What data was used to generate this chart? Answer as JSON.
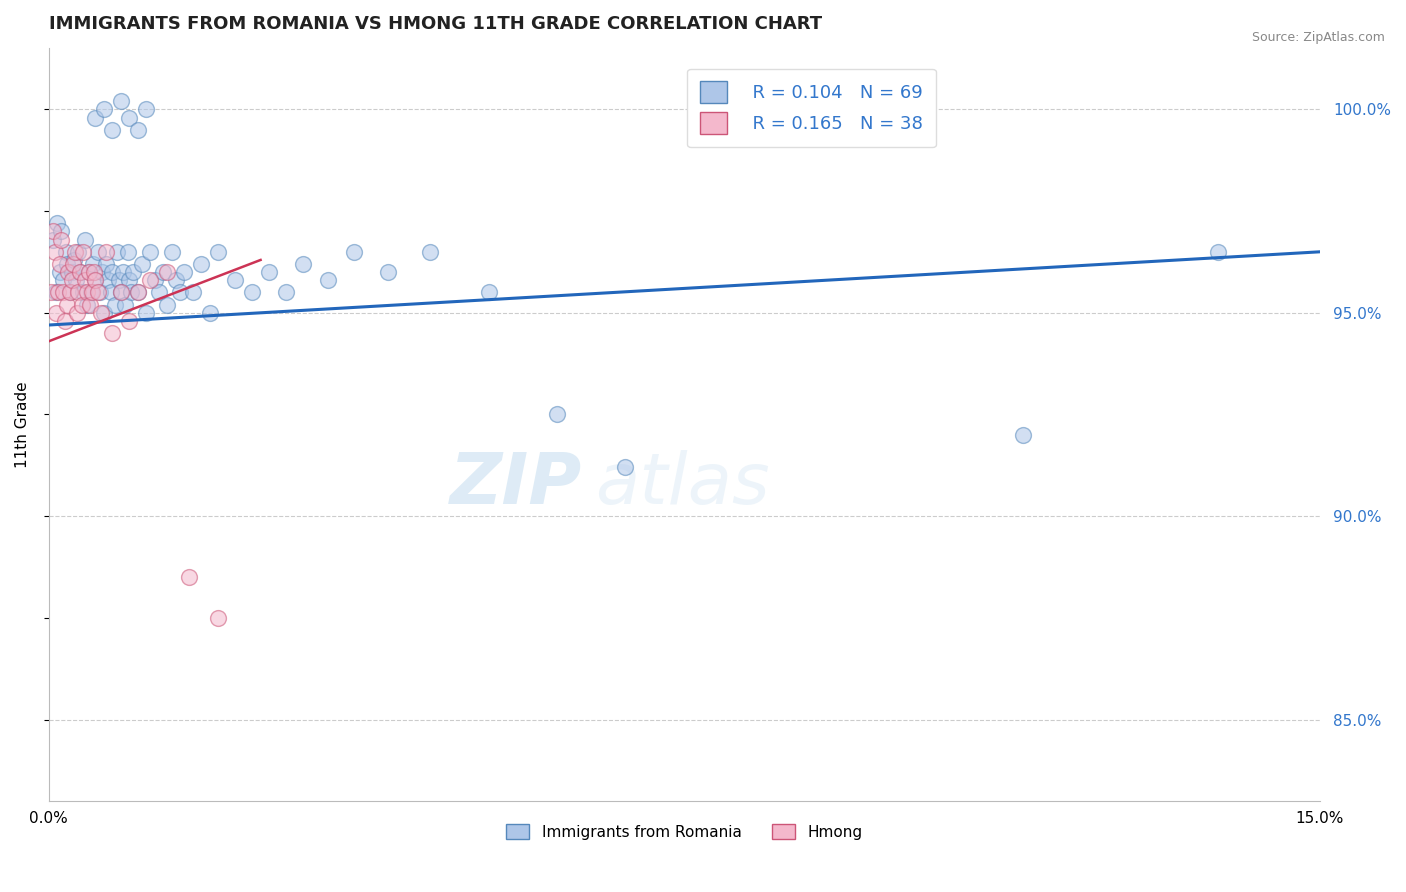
{
  "title": "IMMIGRANTS FROM ROMANIA VS HMONG 11TH GRADE CORRELATION CHART",
  "source": "Source: ZipAtlas.com",
  "ylabel": "11th Grade",
  "xlim": [
    0.0,
    15.0
  ],
  "ylim": [
    83.0,
    101.5
  ],
  "right_yticks": [
    85.0,
    90.0,
    95.0,
    100.0
  ],
  "legend_r1": "R = 0.104",
  "legend_n1": "N = 69",
  "legend_r2": "R = 0.165",
  "legend_n2": "N = 38",
  "legend_label1": "Immigrants from Romania",
  "legend_label2": "Hmong",
  "romania_color": "#aec6e8",
  "hmong_color": "#f4b8cc",
  "romania_edge": "#5588bb",
  "hmong_edge": "#cc5577",
  "trendline_romania_color": "#2266bb",
  "trendline_hmong_color": "#cc3355",
  "watermark_zip": "ZIP",
  "watermark_atlas": "atlas",
  "dot_size": 130,
  "dot_alpha": 0.55,
  "romania_x": [
    0.05,
    0.08,
    0.1,
    0.13,
    0.15,
    0.17,
    0.2,
    0.22,
    0.25,
    0.27,
    0.3,
    0.32,
    0.35,
    0.37,
    0.4,
    0.43,
    0.45,
    0.48,
    0.5,
    0.52,
    0.55,
    0.58,
    0.6,
    0.63,
    0.65,
    0.68,
    0.7,
    0.73,
    0.75,
    0.78,
    0.8,
    0.83,
    0.85,
    0.88,
    0.9,
    0.93,
    0.95,
    0.97,
    1.0,
    1.05,
    1.1,
    1.15,
    1.2,
    1.25,
    1.3,
    1.35,
    1.4,
    1.45,
    1.5,
    1.55,
    1.6,
    1.7,
    1.8,
    1.9,
    2.0,
    2.2,
    2.4,
    2.6,
    2.8,
    3.0,
    3.3,
    3.6,
    4.0,
    4.5,
    5.2,
    6.0,
    6.8,
    11.5,
    13.8
  ],
  "romania_y": [
    96.8,
    95.5,
    97.2,
    96.0,
    97.0,
    95.8,
    96.5,
    96.2,
    95.5,
    96.0,
    96.3,
    95.8,
    96.5,
    96.0,
    95.5,
    96.8,
    95.2,
    96.0,
    95.5,
    96.2,
    95.8,
    96.5,
    95.5,
    96.0,
    95.0,
    96.2,
    95.8,
    95.5,
    96.0,
    95.2,
    96.5,
    95.8,
    95.5,
    96.0,
    95.2,
    96.5,
    95.8,
    95.5,
    96.0,
    95.5,
    96.2,
    95.0,
    96.5,
    95.8,
    95.5,
    96.0,
    95.2,
    96.5,
    95.8,
    95.5,
    96.0,
    95.5,
    96.2,
    95.0,
    96.5,
    95.8,
    95.5,
    96.0,
    95.5,
    96.2,
    95.8,
    96.5,
    96.0,
    96.5,
    95.5,
    92.5,
    91.2,
    92.0,
    96.5
  ],
  "hmong_x": [
    0.03,
    0.05,
    0.07,
    0.09,
    0.11,
    0.13,
    0.15,
    0.17,
    0.19,
    0.21,
    0.23,
    0.25,
    0.27,
    0.29,
    0.31,
    0.33,
    0.35,
    0.37,
    0.39,
    0.41,
    0.43,
    0.45,
    0.47,
    0.49,
    0.51,
    0.53,
    0.55,
    0.58,
    0.62,
    0.68,
    0.75,
    0.85,
    0.95,
    1.05,
    1.2,
    1.4,
    1.65,
    2.0
  ],
  "hmong_y": [
    95.5,
    97.0,
    96.5,
    95.0,
    95.5,
    96.2,
    96.8,
    95.5,
    94.8,
    95.2,
    96.0,
    95.5,
    95.8,
    96.2,
    96.5,
    95.0,
    95.5,
    96.0,
    95.2,
    96.5,
    95.8,
    95.5,
    96.0,
    95.2,
    95.5,
    96.0,
    95.8,
    95.5,
    95.0,
    96.5,
    94.5,
    95.5,
    94.8,
    95.5,
    95.8,
    96.0,
    88.5,
    87.5
  ],
  "romania_extra_high_x": [
    0.55,
    0.65,
    0.75,
    0.85,
    0.95,
    1.05,
    1.15
  ],
  "romania_extra_high_y": [
    99.8,
    100.0,
    99.5,
    100.2,
    99.8,
    99.5,
    100.0
  ]
}
